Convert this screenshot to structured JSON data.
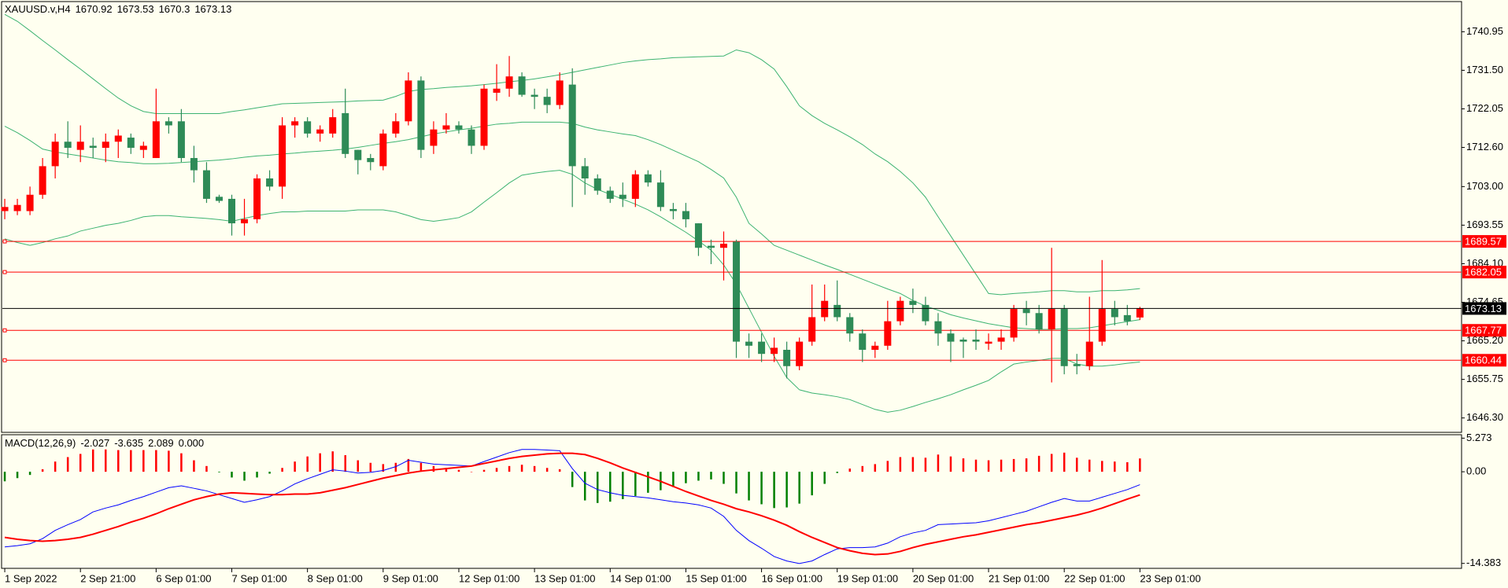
{
  "chart_data": [
    {
      "type": "candlestick",
      "title": "XAUUSD.v,H4",
      "open": [
        1697,
        1697,
        1697,
        1701,
        1708,
        1714,
        1712,
        1713,
        1712.5,
        1714,
        1715,
        1712,
        1710,
        1719,
        1719,
        1710,
        1707,
        1700.5,
        1700,
        1694,
        1695,
        1705,
        1703,
        1718,
        1719,
        1716,
        1716,
        1721,
        1712,
        1710,
        1708,
        1716,
        1719,
        1729,
        1713,
        1717,
        1718,
        1717,
        1713,
        1726,
        1727,
        1730,
        1725.5,
        1725,
        1723,
        1728,
        1708,
        1705,
        1702,
        1701,
        1700,
        1706,
        1704,
        1697.5,
        1697,
        1694,
        1688.5,
        1688,
        1689.5,
        1665,
        1665,
        1662,
        1663,
        1659,
        1665,
        1671,
        1674,
        1671,
        1667,
        1663,
        1664,
        1670,
        1675,
        1674,
        1670,
        1667,
        1665.5,
        1665.5,
        1664.5,
        1665,
        1666,
        1673,
        1672,
        1668,
        1673,
        1659.5,
        1659,
        1665,
        1673,
        1671.5,
        1670.92
      ],
      "high": [
        1700,
        1700,
        1703,
        1710,
        1716,
        1719,
        1718,
        1715,
        1716,
        1717,
        1716,
        1714,
        1727,
        1720,
        1722,
        1713,
        1709,
        1701,
        1701,
        1700,
        1706,
        1707,
        1720,
        1720,
        1720,
        1718,
        1722,
        1727,
        1712,
        1711,
        1717,
        1721,
        1731,
        1730,
        1719,
        1721,
        1719,
        1718,
        1728,
        1733,
        1735,
        1731,
        1727,
        1727,
        1731,
        1732,
        1710,
        1706,
        1703,
        1704,
        1707,
        1707,
        1707,
        1699,
        1699,
        1694,
        1690,
        1692,
        1690,
        1667,
        1667,
        1666,
        1665,
        1666,
        1679,
        1679,
        1680,
        1672,
        1668,
        1665,
        1675,
        1676,
        1678,
        1676,
        1672,
        1668,
        1666,
        1668,
        1667,
        1668,
        1674,
        1675,
        1674,
        1688,
        1674,
        1662,
        1676,
        1685,
        1675,
        1674,
        1673.53
      ],
      "low": [
        1695,
        1696,
        1696,
        1700,
        1705,
        1710,
        1709,
        1710,
        1709,
        1710,
        1711,
        1710,
        1710,
        1716,
        1709,
        1704,
        1699,
        1699,
        1691,
        1691,
        1694,
        1702,
        1700,
        1715,
        1715,
        1714,
        1715,
        1710,
        1706,
        1707,
        1707,
        1715,
        1718,
        1710,
        1711,
        1716,
        1716,
        1711,
        1712,
        1724,
        1725,
        1725,
        1722,
        1721,
        1722,
        1698,
        1701,
        1701,
        1699,
        1698,
        1698,
        1703,
        1697,
        1695,
        1693,
        1686,
        1684,
        1680,
        1661,
        1661,
        1660,
        1660,
        1656,
        1658,
        1664,
        1670,
        1670,
        1665,
        1660,
        1661,
        1663,
        1669,
        1672,
        1669,
        1664,
        1660,
        1661,
        1663,
        1663,
        1663,
        1665,
        1669,
        1667,
        1655,
        1657,
        1657,
        1658,
        1664,
        1669,
        1669,
        1670.3
      ],
      "close": [
        1698,
        1698.5,
        1701,
        1708,
        1714,
        1712.5,
        1714,
        1712.5,
        1714,
        1715.5,
        1712.5,
        1713,
        1719,
        1718,
        1710,
        1707,
        1700,
        1699.5,
        1694,
        1695,
        1705,
        1703,
        1718,
        1719,
        1716,
        1717,
        1720,
        1711,
        1709.5,
        1709,
        1716,
        1719,
        1729,
        1712,
        1717,
        1718,
        1717,
        1713,
        1727,
        1727,
        1730,
        1725.5,
        1725,
        1723,
        1729,
        1708,
        1705,
        1702,
        1700,
        1700,
        1706,
        1704,
        1698,
        1697,
        1695,
        1688,
        1688,
        1689,
        1665,
        1664,
        1662,
        1663.5,
        1659,
        1665,
        1671,
        1675,
        1671,
        1667,
        1663,
        1664,
        1670,
        1675,
        1674,
        1670,
        1667,
        1665,
        1665,
        1665,
        1665,
        1666,
        1673,
        1672,
        1668,
        1673,
        1659,
        1659,
        1665,
        1673,
        1671,
        1670,
        1673.13
      ],
      "up_color": "#ff0000",
      "down_color": "#2e8b57",
      "bands": [
        {
          "color": "#3cb371",
          "values": [
            1745.2,
            1743.5,
            1741.2,
            1738.8,
            1736.5,
            1734.1,
            1731.8,
            1729.4,
            1727.0,
            1724.7,
            1722.8,
            1721.4,
            1720.9,
            1720.9,
            1720.9,
            1720.9,
            1720.9,
            1720.9,
            1721.4,
            1721.8,
            1722.3,
            1722.8,
            1723.3,
            1723.4,
            1723.5,
            1723.6,
            1723.7,
            1723.8,
            1724.0,
            1724.1,
            1724.2,
            1725.1,
            1726.3,
            1726.8,
            1727.0,
            1727.3,
            1727.5,
            1727.7,
            1728.0,
            1728.3,
            1728.7,
            1729.0,
            1729.4,
            1729.9,
            1730.4,
            1731.0,
            1731.6,
            1732.2,
            1732.8,
            1733.4,
            1733.8,
            1734.1,
            1734.3,
            1734.6,
            1734.7,
            1734.8,
            1734.9,
            1735.0,
            1736.5,
            1735.8,
            1734.1,
            1731.8,
            1727.5,
            1722.8,
            1720.4,
            1718.5,
            1716.9,
            1715.2,
            1713.3,
            1711.0,
            1709.1,
            1706.7,
            1703.9,
            1700.4,
            1695.6,
            1690.9,
            1686.2,
            1681.5,
            1676.8,
            1676.5,
            1676.8,
            1677.0,
            1677.2,
            1677.5,
            1677.5,
            1677.2,
            1677.2,
            1677.5,
            1677.5,
            1677.7,
            1678.0
          ]
        },
        {
          "color": "#3cb371",
          "values": [
            1717.8,
            1716.2,
            1714.3,
            1712.2,
            1711.5,
            1711.0,
            1710.5,
            1710.0,
            1709.5,
            1709.1,
            1708.9,
            1708.6,
            1708.6,
            1708.7,
            1708.9,
            1709.1,
            1709.3,
            1709.5,
            1709.8,
            1710.2,
            1710.5,
            1710.7,
            1711.0,
            1711.2,
            1711.5,
            1711.7,
            1711.9,
            1712.2,
            1712.6,
            1713.1,
            1713.6,
            1714.0,
            1714.5,
            1715.2,
            1715.9,
            1716.4,
            1716.9,
            1717.3,
            1717.8,
            1718.3,
            1718.5,
            1718.8,
            1718.8,
            1718.8,
            1718.8,
            1718.5,
            1717.6,
            1716.9,
            1716.4,
            1715.9,
            1715.5,
            1714.5,
            1713.3,
            1711.9,
            1710.5,
            1709.1,
            1707.2,
            1705.1,
            1700.4,
            1694.0,
            1691.4,
            1688.6,
            1687.4,
            1686.2,
            1685.0,
            1683.8,
            1682.7,
            1681.5,
            1680.3,
            1679.1,
            1677.9,
            1676.8,
            1675.1,
            1673.7,
            1672.7,
            1671.6,
            1670.8,
            1670.1,
            1669.4,
            1668.9,
            1668.4,
            1668.2,
            1668.0,
            1668.0,
            1668.2,
            1668.2,
            1668.4,
            1668.9,
            1669.4,
            1669.9,
            1670.4
          ]
        },
        {
          "color": "#3cb371",
          "values": [
            1690.2,
            1689.3,
            1688.6,
            1689.3,
            1690.2,
            1690.9,
            1692.1,
            1692.8,
            1693.5,
            1694.0,
            1694.7,
            1695.6,
            1695.9,
            1695.9,
            1695.6,
            1695.4,
            1695.2,
            1694.9,
            1694.5,
            1695.2,
            1695.9,
            1696.4,
            1696.8,
            1696.8,
            1697.0,
            1697.0,
            1697.0,
            1697.0,
            1697.3,
            1697.3,
            1697.3,
            1696.8,
            1695.9,
            1694.9,
            1694.5,
            1694.9,
            1695.4,
            1696.8,
            1699.2,
            1701.5,
            1703.9,
            1705.8,
            1706.3,
            1706.7,
            1707.0,
            1706.0,
            1703.9,
            1702.3,
            1701.1,
            1699.9,
            1698.7,
            1697.3,
            1695.6,
            1693.7,
            1691.8,
            1689.7,
            1687.4,
            1683.8,
            1679.1,
            1673.2,
            1667.3,
            1661.4,
            1656.2,
            1653.2,
            1652.4,
            1652.0,
            1651.5,
            1650.8,
            1649.6,
            1648.4,
            1647.7,
            1648.2,
            1649.1,
            1650.1,
            1651.0,
            1652.0,
            1653.2,
            1654.3,
            1655.5,
            1657.6,
            1659.5,
            1660.0,
            1660.4,
            1660.9,
            1660.9,
            1659.5,
            1659.0,
            1659.0,
            1659.3,
            1659.7,
            1660.0
          ]
        }
      ],
      "levels": [
        {
          "value": 1689.57,
          "color": "#ff0000"
        },
        {
          "value": 1682.05,
          "color": "#ff0000"
        },
        {
          "value": 1667.77,
          "color": "#ff0000"
        },
        {
          "value": 1660.44,
          "color": "#ff0000"
        }
      ],
      "last_price_color": "#000000",
      "xlim": [
        -0.19,
        115.5
      ],
      "ylim": [
        1642.77,
        1748.15
      ],
      "yticks": [
        1740.95,
        {
          "value": 1731.5,
          "label": "1731.50"
        },
        1722.05,
        {
          "value": 1712.6,
          "label": "1712.60"
        },
        {
          "value": 1703,
          "label": "1703.00"
        },
        1693.55,
        {
          "value": 1684.1,
          "label": "1684.10"
        },
        1674.65,
        {
          "value": 1665.2,
          "label": "1665.20"
        },
        1655.75,
        {
          "value": 1646.3,
          "label": "1646.30"
        }
      ]
    },
    {
      "type": "bar",
      "title": "MACD(12,26,9)",
      "values": [
        -1.5,
        -1.0,
        -0.5,
        0.4,
        1.6,
        2.3,
        2.8,
        3.5,
        3.5,
        3.4,
        3.4,
        3.4,
        3.4,
        3.3,
        2.9,
        1.8,
        0.9,
        -0.1,
        -0.9,
        -1.4,
        -0.9,
        -0.3,
        0.6,
        1.6,
        2.4,
        2.9,
        3.2,
        2.6,
        1.8,
        1.4,
        1.2,
        1.4,
        2.0,
        1.4,
        0.9,
        0.6,
        0.3,
        0.0,
        0.3,
        0.6,
        0.9,
        1.1,
        0.9,
        0.6,
        0.4,
        -2.4,
        -4.5,
        -4.9,
        -4.7,
        -4.3,
        -3.8,
        -3.3,
        -2.9,
        -2.4,
        -1.8,
        -1.4,
        -1.2,
        -1.9,
        -3.4,
        -4.5,
        -5.1,
        -5.7,
        -5.6,
        -5.0,
        -3.7,
        -1.9,
        -0.2,
        0.5,
        0.9,
        1.2,
        1.7,
        2.3,
        2.3,
        2.2,
        2.7,
        2.4,
        2.1,
        1.9,
        1.8,
        1.9,
        2.0,
        2.1,
        2.5,
        2.8,
        3.0,
        2.2,
        1.9,
        1.7,
        1.6,
        1.5,
        2.089
      ],
      "up_color": "#ff0000",
      "down_color": "#008000",
      "lines": [
        {
          "color": "#0000ff",
          "width": 1,
          "values": [
            -11.8,
            -11.6,
            -11.3,
            -10.5,
            -9.2,
            -8.3,
            -7.5,
            -6.3,
            -5.7,
            -5.2,
            -4.5,
            -3.9,
            -3.2,
            -2.5,
            -2.2,
            -2.6,
            -3.0,
            -3.6,
            -4.2,
            -4.8,
            -4.4,
            -3.9,
            -3.0,
            -1.9,
            -1.1,
            -0.4,
            0.3,
            0.1,
            -0.2,
            -0.1,
            0.2,
            0.8,
            1.8,
            1.5,
            1.2,
            1.1,
            1.0,
            0.9,
            1.6,
            2.3,
            3.0,
            3.5,
            3.5,
            3.4,
            3.3,
            0.5,
            -1.8,
            -2.8,
            -3.3,
            -3.7,
            -3.9,
            -4.1,
            -4.4,
            -4.7,
            -4.9,
            -5.2,
            -5.7,
            -7.0,
            -9.2,
            -10.8,
            -12.0,
            -13.3,
            -14.0,
            -14.4,
            -14.0,
            -13.0,
            -12.1,
            -11.9,
            -11.9,
            -11.8,
            -11.2,
            -10.2,
            -9.6,
            -9.2,
            -8.3,
            -8.2,
            -8.1,
            -8.0,
            -7.7,
            -7.2,
            -6.7,
            -6.2,
            -5.5,
            -4.8,
            -4.2,
            -4.6,
            -4.6,
            -4.0,
            -3.4,
            -2.8,
            -2.027
          ]
        },
        {
          "color": "#ff0000",
          "width": 2,
          "values": [
            -10.3,
            -10.6,
            -10.8,
            -10.9,
            -10.8,
            -10.6,
            -10.3,
            -9.8,
            -9.2,
            -8.6,
            -7.9,
            -7.3,
            -6.6,
            -5.8,
            -5.1,
            -4.4,
            -3.9,
            -3.5,
            -3.3,
            -3.4,
            -3.5,
            -3.6,
            -3.6,
            -3.5,
            -3.5,
            -3.3,
            -2.9,
            -2.5,
            -2.0,
            -1.5,
            -1.0,
            -0.6,
            -0.2,
            0.1,
            0.3,
            0.5,
            0.7,
            0.9,
            1.3,
            1.7,
            2.1,
            2.4,
            2.6,
            2.8,
            2.9,
            2.9,
            2.7,
            2.1,
            1.4,
            0.6,
            -0.1,
            -0.8,
            -1.5,
            -2.3,
            -3.1,
            -3.8,
            -4.5,
            -5.1,
            -5.8,
            -6.3,
            -6.9,
            -7.6,
            -8.4,
            -9.4,
            -10.3,
            -11.1,
            -11.9,
            -12.4,
            -12.8,
            -13.0,
            -12.9,
            -12.5,
            -11.9,
            -11.4,
            -11.0,
            -10.6,
            -10.2,
            -9.9,
            -9.5,
            -9.1,
            -8.7,
            -8.3,
            -8.0,
            -7.6,
            -7.2,
            -6.8,
            -6.3,
            -5.7,
            -5.0,
            -4.3,
            -3.635
          ]
        }
      ],
      "fourth_value": {
        "value": 0,
        "label": "0.000"
      },
      "xlim": [
        -0.19,
        115.5
      ],
      "ylim": [
        -15.16,
        5.69
      ],
      "yticks": [
        5.273,
        {
          "value": 0,
          "label": "0.00"
        },
        -14.383
      ],
      "xticks": [
        {
          "value": 0,
          "label": "1 Sep 2022"
        },
        {
          "value": 6,
          "label": "2 Sep 21:00"
        },
        {
          "value": 12,
          "label": "6 Sep 01:00"
        },
        {
          "value": 18,
          "label": "7 Sep 01:00"
        },
        {
          "value": 24,
          "label": "8 Sep 01:00"
        },
        {
          "value": 30,
          "label": "9 Sep 01:00"
        },
        {
          "value": 36,
          "label": "12 Sep 01:00"
        },
        {
          "value": 42,
          "label": "13 Sep 01:00"
        },
        {
          "value": 48,
          "label": "14 Sep 01:00"
        },
        {
          "value": 54,
          "label": "15 Sep 01:00"
        },
        {
          "value": 60,
          "label": "16 Sep 01:00"
        },
        {
          "value": 66,
          "label": "19 Sep 01:00"
        },
        {
          "value": 72,
          "label": "20 Sep 01:00"
        },
        {
          "value": 78,
          "label": "21 Sep 01:00"
        },
        {
          "value": 84,
          "label": "22 Sep 01:00"
        },
        {
          "value": 90,
          "label": "23 Sep 01:00"
        }
      ]
    }
  ]
}
